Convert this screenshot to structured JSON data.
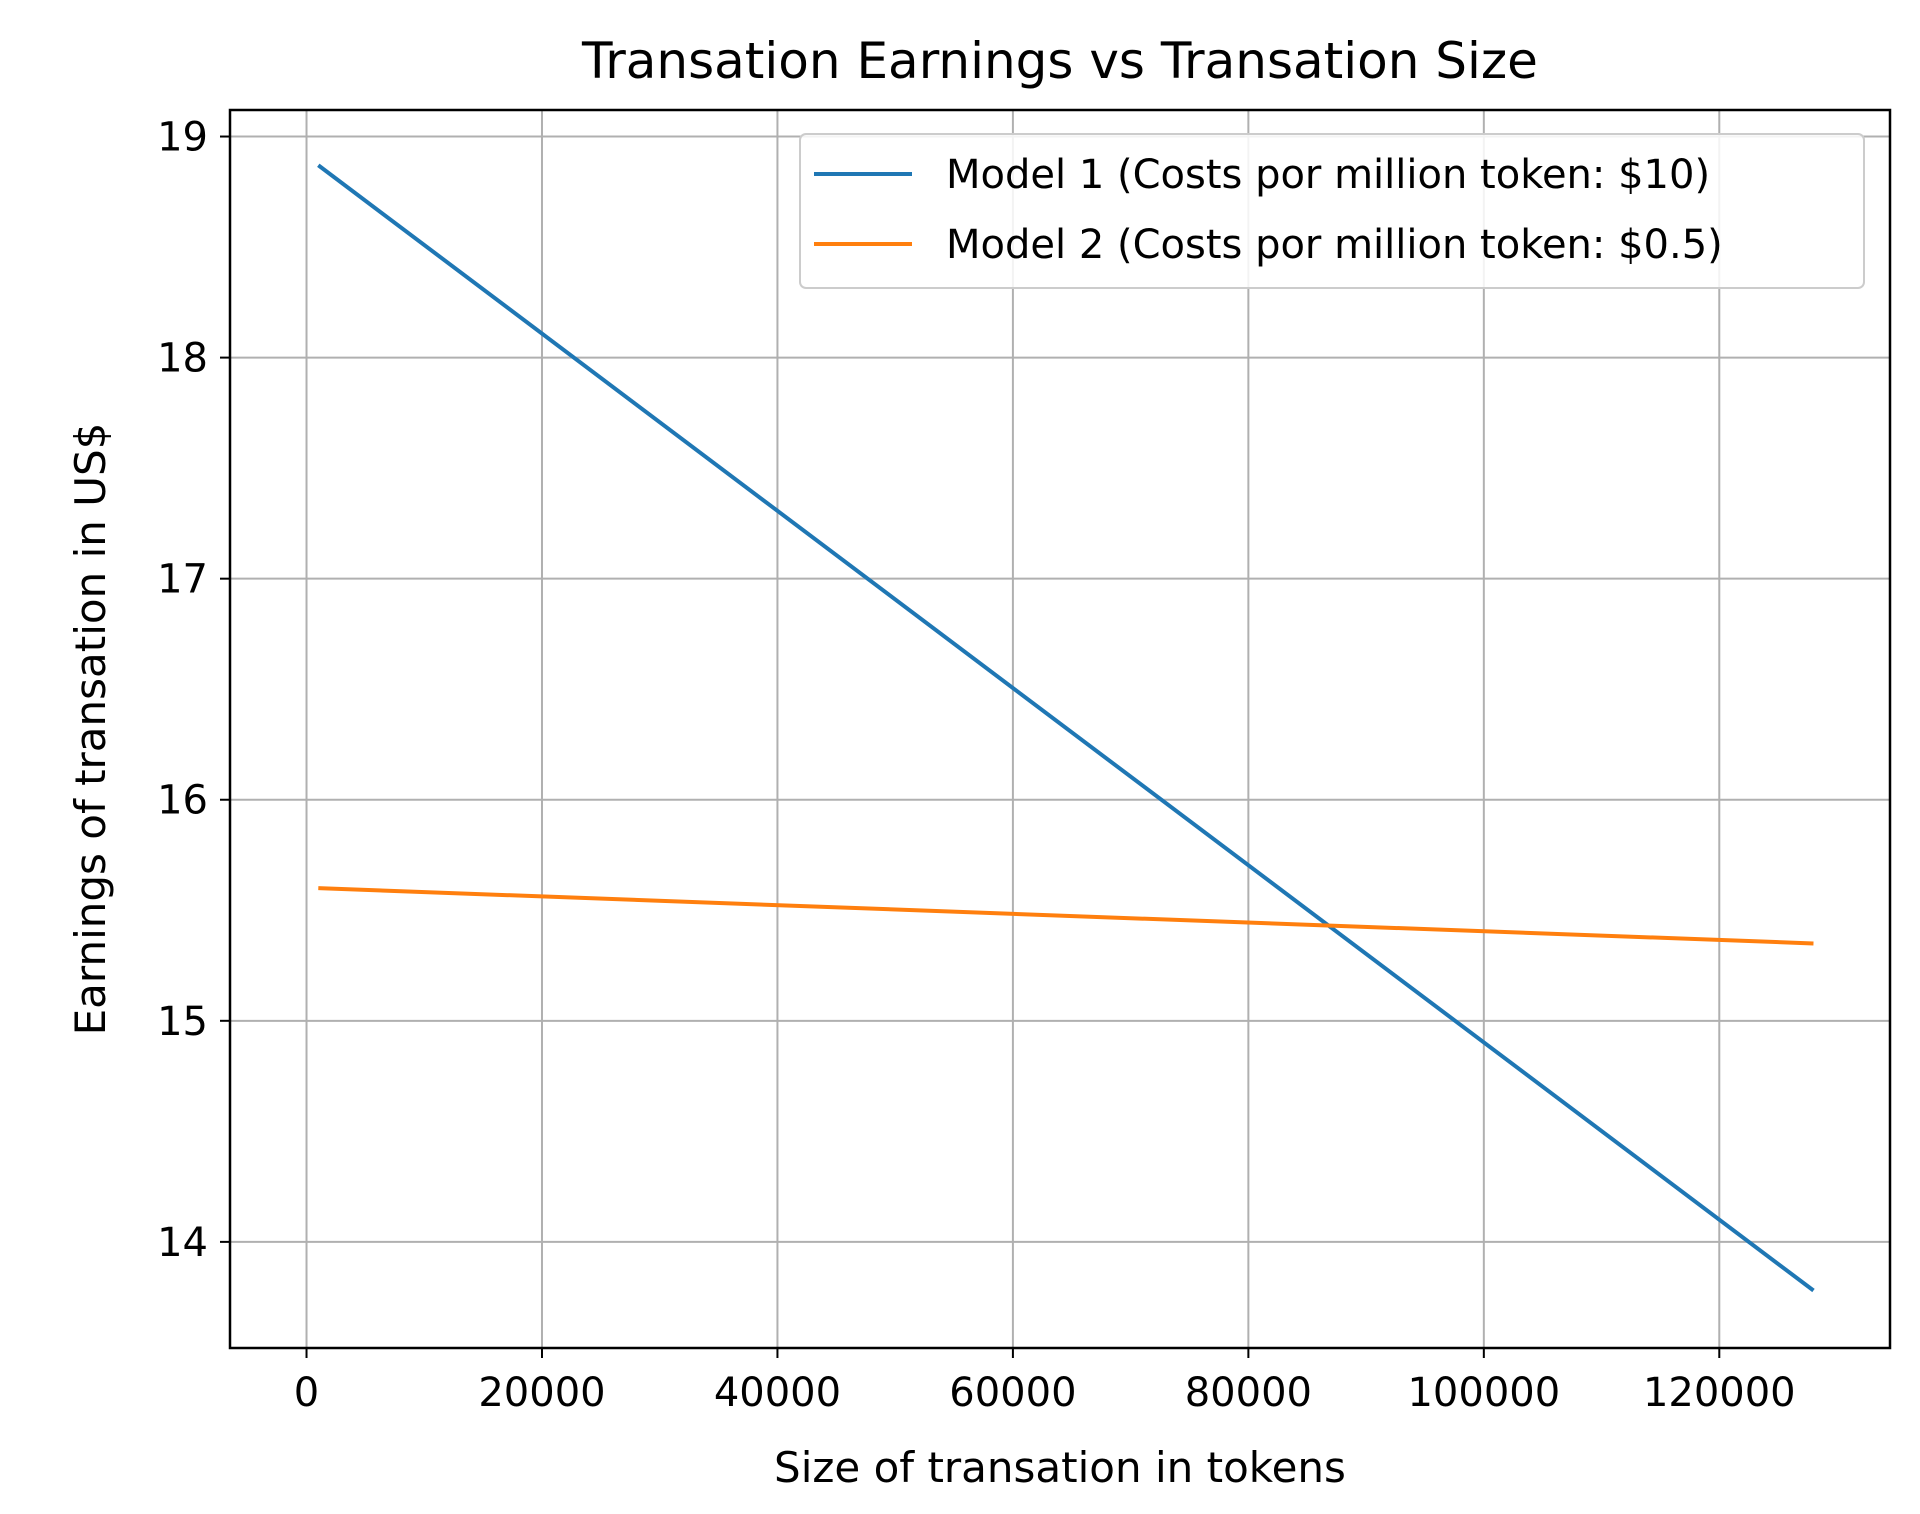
{
  "chart_data": {
    "type": "line",
    "title": "Transation Earnings vs Transation Size",
    "xlabel": "Size of transation in tokens",
    "ylabel": "Earnings of transation in US$",
    "xlim": [
      -6500,
      134500
    ],
    "ylim": [
      13.52,
      19.12
    ],
    "xticks": [
      0,
      20000,
      40000,
      60000,
      80000,
      100000,
      120000
    ],
    "xtick_labels": [
      "0",
      "20000",
      "40000",
      "60000",
      "80000",
      "100000",
      "120000"
    ],
    "yticks": [
      14,
      15,
      16,
      17,
      18,
      19
    ],
    "ytick_labels": [
      "14",
      "15",
      "16",
      "17",
      "18",
      "19"
    ],
    "grid": true,
    "legend_position": "top-right",
    "series": [
      {
        "name": "Model 1 (Costs por million token: $10)",
        "color": "#1f77b4",
        "x": [
          1000,
          128000
        ],
        "y": [
          18.87,
          13.78
        ]
      },
      {
        "name": "Model 2 (Costs por million token: $0.5)",
        "color": "#ff7f0e",
        "x": [
          1000,
          128000
        ],
        "y": [
          15.6,
          15.35
        ]
      }
    ]
  }
}
